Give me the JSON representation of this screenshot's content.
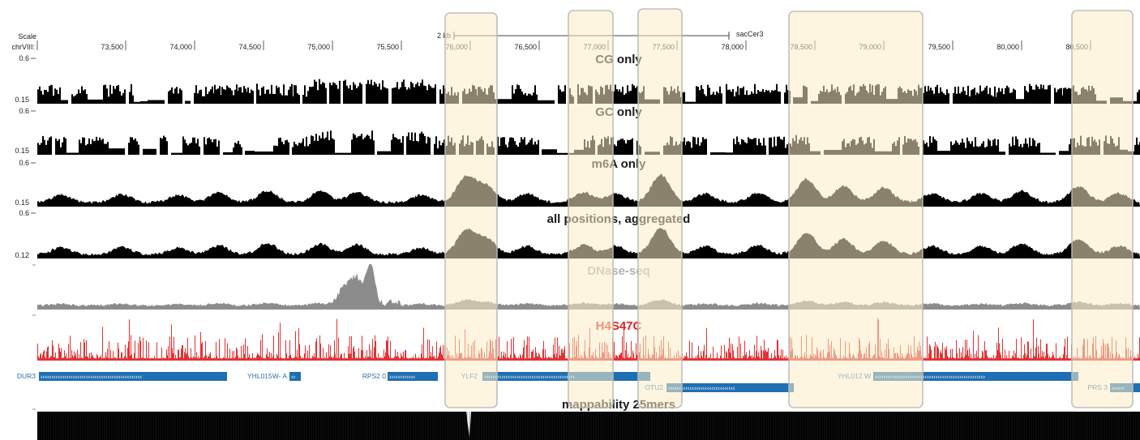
{
  "ruler": {
    "scale_label": "Scale",
    "chrom_label": "chrVIII:",
    "scale_bar_label": "2 kb",
    "assembly": "sacCer3",
    "ticks": [
      "73,500",
      "74,000",
      "74,500",
      "75,000",
      "75,500",
      "76,000",
      "76,500",
      "77,000",
      "77,500",
      "78,000",
      "78,500",
      "79,000",
      "79,500",
      "80,000",
      "80,500"
    ]
  },
  "tracks": [
    {
      "id": "cg",
      "title": "CG only",
      "title_color": "#1a1a1a",
      "color": "#000000",
      "style": "blocky",
      "y_max": "0.6",
      "y_min": "0.15"
    },
    {
      "id": "gc",
      "title": "GC only",
      "title_color": "#1a1a1a",
      "color": "#000000",
      "style": "blocky",
      "y_max": "0.6",
      "y_min": "0.15"
    },
    {
      "id": "m6a",
      "title": "m6A only",
      "title_color": "#1a1a1a",
      "color": "#000000",
      "style": "smooth",
      "y_max": "0.6",
      "y_min": "0.15"
    },
    {
      "id": "all",
      "title": "all positions, aggregated",
      "title_color": "#1a1a1a",
      "color": "#000000",
      "style": "smooth",
      "y_max": "0.6",
      "y_min": "0.12"
    },
    {
      "id": "dnase",
      "title": "DNase-seq",
      "title_color": "#b0b0b0",
      "color": "#8c8c8c",
      "style": "dnase",
      "y_max": "",
      "y_min": ""
    },
    {
      "id": "h4s47c",
      "title": "H4S47C",
      "title_color": "#e02020",
      "color": "#e41a1c",
      "style": "spiky",
      "y_max": "",
      "y_min": ""
    },
    {
      "id": "mappability",
      "title": "mappability 25mers",
      "title_color": "#1a1a1a",
      "color": "#000000",
      "style": "solid",
      "y_max": "",
      "y_min": ""
    }
  ],
  "genes": [
    {
      "name": "DUR3",
      "strand": "-"
    },
    {
      "name": "YHL015W- A",
      "strand": "+"
    },
    {
      "name": "RPS2 0",
      "strand": "+"
    },
    {
      "name": "YLF2",
      "strand": "-"
    },
    {
      "name": "OTU2",
      "strand": "-"
    },
    {
      "name": "YHL012 W",
      "strand": "+"
    },
    {
      "name": "PRS 3",
      "strand": "-"
    }
  ],
  "colors": {
    "gene": "#1f6fb2",
    "highlight_fill": "#fcecc4",
    "highlight_border": "#b9b9b9"
  },
  "highlight_count": 5
}
